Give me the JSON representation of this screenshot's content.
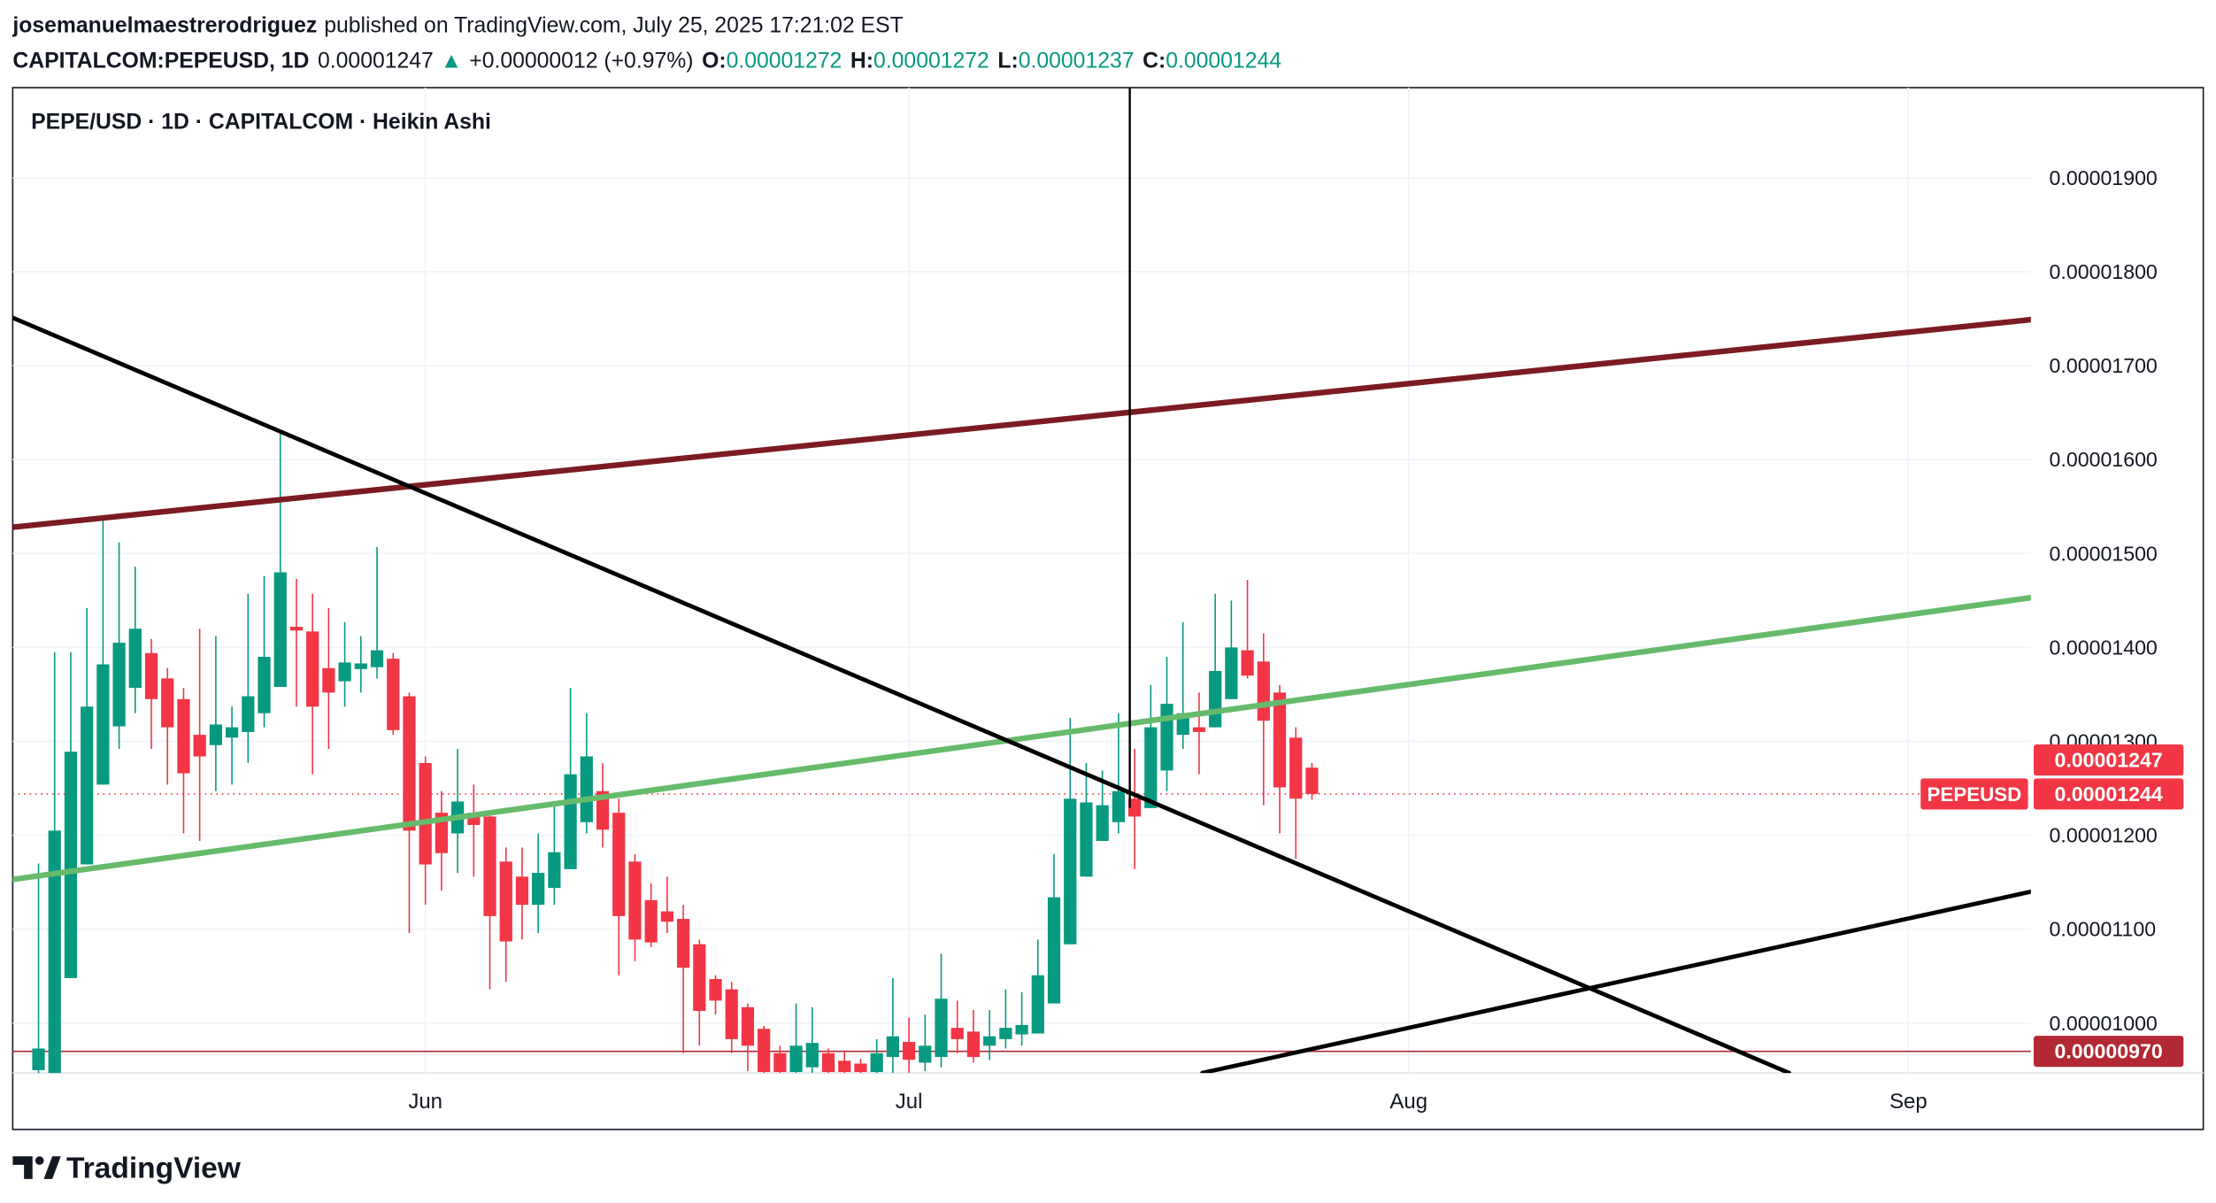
{
  "header": {
    "author": "josemanuelmaestrerodriguez",
    "published": "published on TradingView.com, July 25, 2025 17:21:02 EST",
    "symbol": "CAPITALCOM:PEPEUSD, 1D",
    "last": "0.00001247",
    "arrow": "▲",
    "change": "+0.00000012 (+0.97%)",
    "ohlc": [
      {
        "label": "O:",
        "value": "0.00001272"
      },
      {
        "label": "H:",
        "value": "0.00001272"
      },
      {
        "label": "L:",
        "value": "0.00001237"
      },
      {
        "label": "C:",
        "value": "0.00001244"
      }
    ]
  },
  "footer": {
    "logo_text": "TradingView"
  },
  "chart_data": {
    "type": "candlestick",
    "title": "PEPE/USD · 1D · CAPITALCOM · Heikin Ashi",
    "up_color": "#089981",
    "down_color": "#f23645",
    "grid": true,
    "xlim": [
      -25.6,
      99.6
    ],
    "ylim": [
      9.47e-06,
      1.996e-05
    ],
    "xticks": [
      {
        "value": 0,
        "label": "Jun"
      },
      {
        "value": 30,
        "label": "Jul"
      },
      {
        "value": 61,
        "label": "Aug"
      },
      {
        "value": 92,
        "label": "Sep"
      }
    ],
    "yticks": [
      {
        "value": 1e-05,
        "label": "0.00001000"
      },
      {
        "value": 1.1e-05,
        "label": "0.00001100"
      },
      {
        "value": 1.2e-05,
        "label": "0.00001200"
      },
      {
        "value": 1.3e-05,
        "label": "0.00001300"
      },
      {
        "value": 1.4e-05,
        "label": "0.00001400"
      },
      {
        "value": 1.5e-05,
        "label": "0.00001500"
      },
      {
        "value": 1.6e-05,
        "label": "0.00001600"
      },
      {
        "value": 1.7e-05,
        "label": "0.00001700"
      },
      {
        "value": 1.8e-05,
        "label": "0.00001800"
      },
      {
        "value": 1.9e-05,
        "label": "0.00001900"
      }
    ],
    "x": [
      -24,
      -23,
      -22,
      -21,
      -20,
      -19,
      -18,
      -17,
      -16,
      -15,
      -14,
      -13,
      -12,
      -11,
      -10,
      -9,
      -8,
      -7,
      -6,
      -5,
      -4,
      -3,
      -2,
      -1,
      0,
      1,
      2,
      3,
      4,
      5,
      6,
      7,
      8,
      9,
      10,
      11,
      12,
      13,
      14,
      15,
      16,
      17,
      18,
      19,
      20,
      21,
      22,
      23,
      24,
      25,
      26,
      27,
      28,
      29,
      30,
      31,
      32,
      33,
      34,
      35,
      36,
      37,
      38,
      39,
      40,
      41,
      42,
      43,
      44,
      45,
      46,
      47,
      48,
      49,
      50,
      51,
      52,
      53,
      54,
      55
    ],
    "open": [
      9.5e-06,
      9.45e-06,
      1.048e-05,
      1.169e-05,
      1.254e-05,
      1.316e-05,
      1.357e-05,
      1.394e-05,
      1.367e-05,
      1.345e-05,
      1.307e-05,
      1.296e-05,
      1.304e-05,
      1.31e-05,
      1.33e-05,
      1.358e-05,
      1.422e-05,
      1.417e-05,
      1.378e-05,
      1.364e-05,
      1.377e-05,
      1.379e-05,
      1.388e-05,
      1.348e-05,
      1.277e-05,
      1.224e-05,
      1.202e-05,
      1.224e-05,
      1.22e-05,
      1.172e-05,
      1.156e-05,
      1.126e-05,
      1.144e-05,
      1.164e-05,
      1.214e-05,
      1.247e-05,
      1.224e-05,
      1.172e-05,
      1.131e-05,
      1.119e-05,
      1.111e-05,
      1.084e-05,
      1.047e-05,
      1.036e-05,
      1.017e-05,
      9.94e-06,
      9.68e-06,
      9.48e-06,
      9.53e-06,
      9.68e-06,
      9.6e-06,
      9.57e-06,
      9.48e-06,
      9.64e-06,
      9.8e-06,
      9.58e-06,
      9.64e-06,
      9.95e-06,
      9.91e-06,
      9.76e-06,
      9.83e-06,
      9.88e-06,
      9.89e-06,
      1.021e-05,
      1.084e-05,
      1.156e-05,
      1.194e-05,
      1.214e-05,
      1.239e-05,
      1.229e-05,
      1.269e-05,
      1.307e-05,
      1.315e-05,
      1.315e-05,
      1.345e-05,
      1.397e-05,
      1.385e-05,
      1.352e-05,
      1.304e-05,
      1.272e-05
    ],
    "high": [
      1.17e-05,
      1.395e-05,
      1.395e-05,
      1.442e-05,
      1.536e-05,
      1.512e-05,
      1.486e-05,
      1.409e-05,
      1.378e-05,
      1.357e-05,
      1.42e-05,
      1.412e-05,
      1.337e-05,
      1.457e-05,
      1.476e-05,
      1.63e-05,
      1.473e-05,
      1.457e-05,
      1.442e-05,
      1.427e-05,
      1.412e-05,
      1.507e-05,
      1.394e-05,
      1.352e-05,
      1.284e-05,
      1.247e-05,
      1.292e-05,
      1.254e-05,
      1.224e-05,
      1.187e-05,
      1.187e-05,
      1.202e-05,
      1.232e-05,
      1.357e-05,
      1.33e-05,
      1.277e-05,
      1.239e-05,
      1.18e-05,
      1.149e-05,
      1.156e-05,
      1.126e-05,
      1.089e-05,
      1.051e-05,
      1.044e-05,
      1.021e-05,
      9.97e-06,
      9.76e-06,
      1.021e-05,
      1.017e-05,
      9.73e-06,
      9.7e-06,
      9.62e-06,
      9.83e-06,
      1.048e-05,
      1.006e-05,
      1.009e-05,
      1.074e-05,
      1.024e-05,
      1.014e-05,
      1.014e-05,
      1.036e-05,
      1.033e-05,
      1.089e-05,
      1.18e-05,
      1.325e-05,
      1.277e-05,
      1.269e-05,
      1.33e-05,
      1.292e-05,
      1.36e-05,
      1.39e-05,
      1.427e-05,
      1.352e-05,
      1.457e-05,
      1.45e-05,
      1.472e-05,
      1.415e-05,
      1.36e-05,
      1.315e-05,
      1.277e-05
    ],
    "low": [
      9.45e-06,
      9.45e-06,
      1.048e-05,
      1.169e-05,
      1.254e-05,
      1.292e-05,
      1.33e-05,
      1.292e-05,
      1.254e-05,
      1.202e-05,
      1.194e-05,
      1.247e-05,
      1.254e-05,
      1.277e-05,
      1.315e-05,
      1.358e-05,
      1.337e-05,
      1.265e-05,
      1.292e-05,
      1.337e-05,
      1.352e-05,
      1.367e-05,
      1.307e-05,
      1.096e-05,
      1.126e-05,
      1.141e-05,
      1.16e-05,
      1.156e-05,
      1.036e-05,
      1.044e-05,
      1.089e-05,
      1.096e-05,
      1.126e-05,
      1.164e-05,
      1.202e-05,
      1.187e-05,
      1.051e-05,
      1.066e-05,
      1.081e-05,
      1.096e-05,
      9.68e-06,
      9.76e-06,
      1.009e-05,
      9.68e-06,
      9.49e-06,
      9.47e-06,
      9.47e-06,
      9.47e-06,
      9.47e-06,
      9.47e-06,
      9.47e-06,
      9.47e-06,
      9.47e-06,
      9.47e-06,
      9.47e-06,
      9.49e-06,
      9.53e-06,
      9.68e-06,
      9.58e-06,
      9.61e-06,
      9.73e-06,
      9.76e-06,
      9.89e-06,
      1.021e-05,
      1.084e-05,
      1.156e-05,
      1.194e-05,
      1.202e-05,
      1.164e-05,
      1.229e-05,
      1.247e-05,
      1.292e-05,
      1.265e-05,
      1.315e-05,
      1.345e-05,
      1.367e-05,
      1.232e-05,
      1.202e-05,
      1.175e-05,
      1.238e-05
    ],
    "close": [
      9.73e-06,
      1.205e-05,
      1.289e-05,
      1.337e-05,
      1.382e-05,
      1.405e-05,
      1.42e-05,
      1.345e-05,
      1.315e-05,
      1.266e-05,
      1.284e-05,
      1.318e-05,
      1.315e-05,
      1.348e-05,
      1.39e-05,
      1.48e-05,
      1.418e-05,
      1.337e-05,
      1.352e-05,
      1.384e-05,
      1.383e-05,
      1.397e-05,
      1.312e-05,
      1.205e-05,
      1.169e-05,
      1.181e-05,
      1.236e-05,
      1.211e-05,
      1.114e-05,
      1.087e-05,
      1.126e-05,
      1.16e-05,
      1.182e-05,
      1.265e-05,
      1.284e-05,
      1.206e-05,
      1.114e-05,
      1.089e-05,
      1.086e-05,
      1.108e-05,
      1.059e-05,
      1.013e-05,
      1.024e-05,
      9.83e-06,
      9.76e-06,
      9.48e-06,
      9.48e-06,
      9.76e-06,
      9.79e-06,
      9.48e-06,
      9.48e-06,
      9.48e-06,
      9.68e-06,
      9.86e-06,
      9.61e-06,
      9.76e-06,
      1.026e-05,
      9.83e-06,
      9.64e-06,
      9.86e-06,
      9.95e-06,
      9.98e-06,
      1.051e-05,
      1.134e-05,
      1.239e-05,
      1.235e-05,
      1.232e-05,
      1.247e-05,
      1.22e-05,
      1.315e-05,
      1.34e-05,
      1.33e-05,
      1.31e-05,
      1.375e-05,
      1.4e-05,
      1.37e-05,
      1.322e-05,
      1.251e-05,
      1.239e-05,
      1.244e-05
    ],
    "lines": [
      {
        "color": "#7b1c22",
        "x": [
          -25.6,
          99.6
        ],
        "y": [
          1.528e-05,
          1.749e-05
        ]
      },
      {
        "color": "#66bb6a",
        "x": [
          -25.6,
          99.6
        ],
        "y": [
          1.153e-05,
          1.453e-05
        ]
      },
      {
        "color": "#000000",
        "x": [
          -25.6,
          84.6
        ],
        "y": [
          1.751e-05,
          9.47e-06
        ]
      },
      {
        "color": "#000000",
        "x": [
          48.2,
          99.6
        ],
        "y": [
          9.47e-06,
          1.14e-05
        ]
      },
      {
        "color": "#000000",
        "x": [
          43.7,
          43.7
        ],
        "y": [
          1.996e-05,
          1.23e-05
        ]
      }
    ],
    "price_labels": [
      {
        "value": 1.247e-05,
        "label": "0.00001247",
        "color": "#f23645"
      },
      {
        "name": "PEPEUSD",
        "value": 1.244e-05,
        "label": "0.00001244",
        "color": "#f23645",
        "line": "dotted"
      },
      {
        "value": 9.7e-06,
        "label": "0.00000970",
        "color": "#b22833",
        "line": "solid"
      }
    ]
  }
}
